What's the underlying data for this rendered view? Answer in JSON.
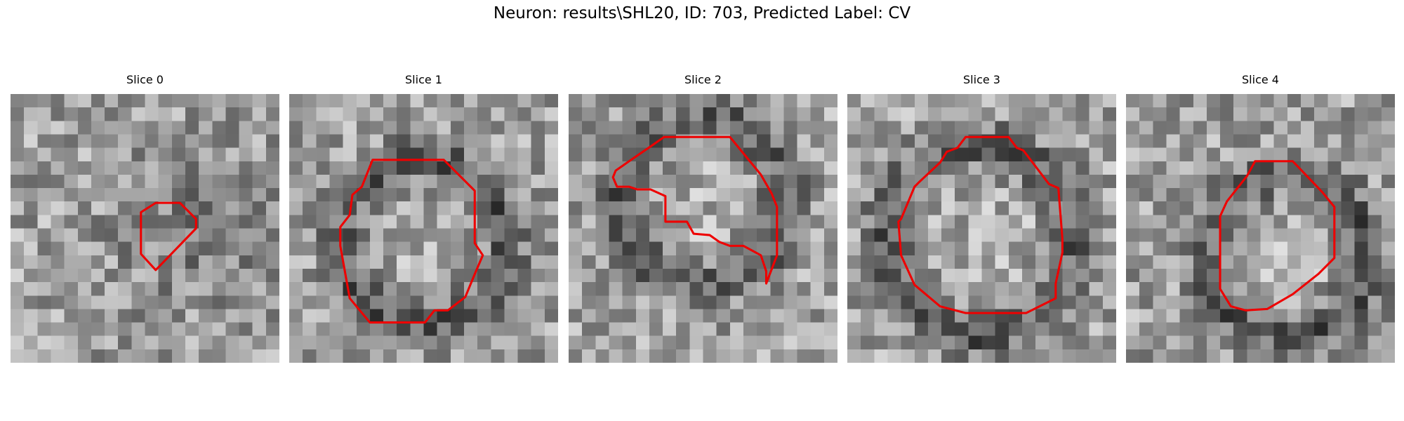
{
  "figure_title": "Neuron: results\\SHL20, ID: 703, Predicted Label: CV",
  "panels": [
    {
      "title": "Slice 0",
      "seed": 11,
      "blob": {
        "cx": 14,
        "cy": 10,
        "r": 4,
        "dark": true
      },
      "contour": [
        [
          10.8,
          8.1
        ],
        [
          12.6,
          8.1
        ],
        [
          13.8,
          9.3
        ],
        [
          13.8,
          10.0
        ],
        [
          10.8,
          13.1
        ],
        [
          9.7,
          11.9
        ],
        [
          9.7,
          8.8
        ]
      ]
    },
    {
      "title": "Slice 1",
      "seed": 23,
      "blob": {
        "cx": 10,
        "cy": 11,
        "r": 6,
        "dark": false
      },
      "contour": [
        [
          6.2,
          4.9
        ],
        [
          11.5,
          4.9
        ],
        [
          13.8,
          7.2
        ],
        [
          13.8,
          11.1
        ],
        [
          14.4,
          12.0
        ],
        [
          13.8,
          13.4
        ],
        [
          13.1,
          15.1
        ],
        [
          11.8,
          16.1
        ],
        [
          10.8,
          16.1
        ],
        [
          10.1,
          17.0
        ],
        [
          6.0,
          17.0
        ],
        [
          4.5,
          15.2
        ],
        [
          3.8,
          11.3
        ],
        [
          3.8,
          9.9
        ],
        [
          4.5,
          9.0
        ],
        [
          4.7,
          7.5
        ],
        [
          5.4,
          6.9
        ]
      ]
    },
    {
      "title": "Slice 2",
      "seed": 37,
      "blob": {
        "cx": 10,
        "cy": 8,
        "r": 6,
        "dark": false
      },
      "contour": [
        [
          7.1,
          3.2
        ],
        [
          12.0,
          3.2
        ],
        [
          14.3,
          6.0
        ],
        [
          15.1,
          7.4
        ],
        [
          15.5,
          8.4
        ],
        [
          15.5,
          12.0
        ],
        [
          14.7,
          14.1
        ],
        [
          14.7,
          13.2
        ],
        [
          14.3,
          12.0
        ],
        [
          13.0,
          11.3
        ],
        [
          12.0,
          11.3
        ],
        [
          11.2,
          11.0
        ],
        [
          10.5,
          10.5
        ],
        [
          9.3,
          10.4
        ],
        [
          8.8,
          9.5
        ],
        [
          7.2,
          9.5
        ],
        [
          7.2,
          7.6
        ],
        [
          6.1,
          7.1
        ],
        [
          5.1,
          7.1
        ],
        [
          4.5,
          6.9
        ],
        [
          3.6,
          6.9
        ],
        [
          3.3,
          6.2
        ],
        [
          3.5,
          5.7
        ],
        [
          4.5,
          5.0
        ],
        [
          6.1,
          3.9
        ]
      ]
    },
    {
      "title": "Slice 3",
      "seed": 51,
      "blob": {
        "cx": 10,
        "cy": 11,
        "r": 7,
        "dark": false
      },
      "contour": [
        [
          8.8,
          3.2
        ],
        [
          12.0,
          3.2
        ],
        [
          12.6,
          4.0
        ],
        [
          13.1,
          4.2
        ],
        [
          15.0,
          6.7
        ],
        [
          15.7,
          7.0
        ],
        [
          16.0,
          10.8
        ],
        [
          16.0,
          11.8
        ],
        [
          15.5,
          14.1
        ],
        [
          15.5,
          15.2
        ],
        [
          13.3,
          16.3
        ],
        [
          11.5,
          16.3
        ],
        [
          8.8,
          16.3
        ],
        [
          6.9,
          15.8
        ],
        [
          5.0,
          14.2
        ],
        [
          4.0,
          12.0
        ],
        [
          3.8,
          9.5
        ],
        [
          4.0,
          9.3
        ],
        [
          5.0,
          6.9
        ],
        [
          5.4,
          6.5
        ],
        [
          6.9,
          5.1
        ],
        [
          7.4,
          4.3
        ],
        [
          8.2,
          4.0
        ]
      ]
    },
    {
      "title": "Slice 4",
      "seed": 67,
      "blob": {
        "cx": 12,
        "cy": 12,
        "r": 6,
        "dark": false
      },
      "contour": [
        [
          9.6,
          5.0
        ],
        [
          12.4,
          5.0
        ],
        [
          14.6,
          7.3
        ],
        [
          15.5,
          8.4
        ],
        [
          15.5,
          10.0
        ],
        [
          15.5,
          12.2
        ],
        [
          14.3,
          13.4
        ],
        [
          12.4,
          14.9
        ],
        [
          10.5,
          16.0
        ],
        [
          8.9,
          16.1
        ],
        [
          7.8,
          15.8
        ],
        [
          7.0,
          14.5
        ],
        [
          7.0,
          9.1
        ],
        [
          7.5,
          8.0
        ],
        [
          9.0,
          6.1
        ]
      ]
    }
  ]
}
